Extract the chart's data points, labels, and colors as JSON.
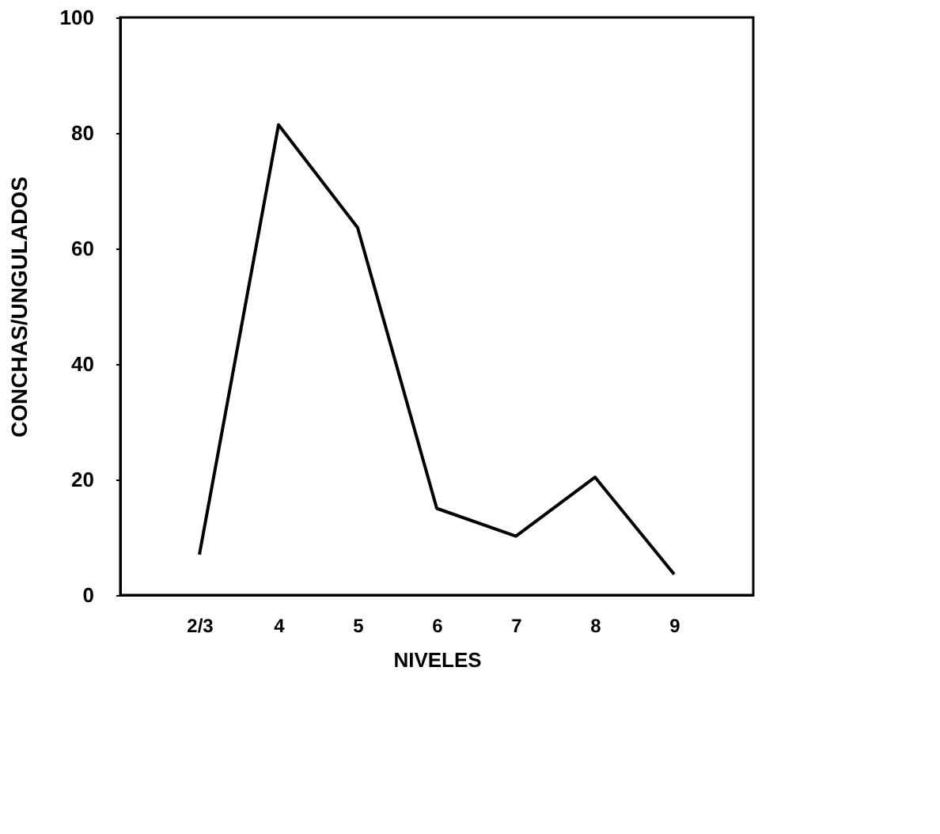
{
  "chart_data": {
    "type": "line",
    "xlabel": "NIVELES",
    "ylabel": "CONCHAS/UNGULADOS",
    "categories": [
      "2/3",
      "4",
      "5",
      "6",
      "7",
      "8",
      "9"
    ],
    "series": [
      {
        "color": "#000000",
        "values": [
          7,
          81.4,
          63.6,
          15,
          10.2,
          20.4,
          3.6
        ]
      }
    ],
    "ylim": [
      0,
      100
    ],
    "yticks": [
      0,
      20,
      40,
      60,
      80,
      100
    ],
    "grid": false,
    "marker": "none",
    "line_style": "solid"
  }
}
